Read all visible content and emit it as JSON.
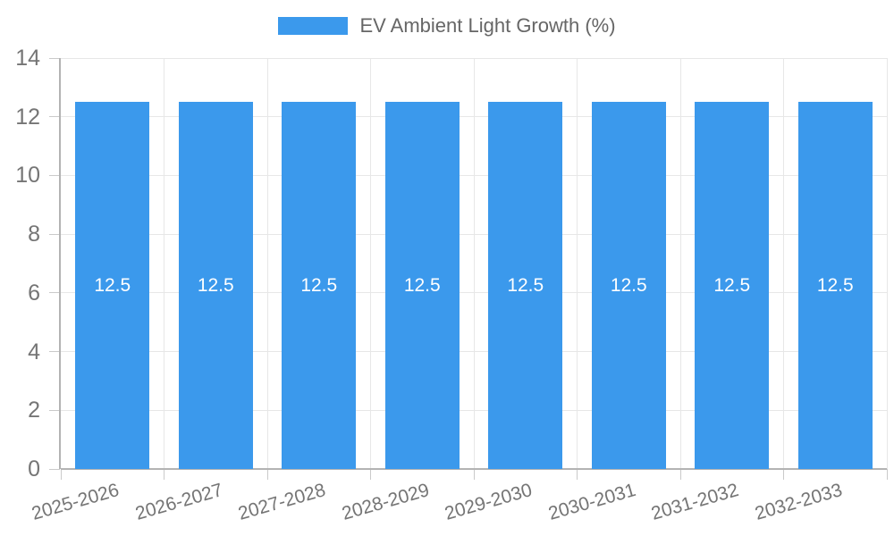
{
  "chart_data": {
    "type": "bar",
    "legend": "EV Ambient Light Growth (%)",
    "legend_position": "top",
    "categories": [
      "2025-2026",
      "2026-2027",
      "2027-2028",
      "2028-2029",
      "2029-2030",
      "2030-2031",
      "2031-2032",
      "2032-2033"
    ],
    "values": [
      12.5,
      12.5,
      12.5,
      12.5,
      12.5,
      12.5,
      12.5,
      12.5
    ],
    "bar_value_labels": [
      "12.5",
      "12.5",
      "12.5",
      "12.5",
      "12.5",
      "12.5",
      "12.5",
      "12.5"
    ],
    "xlabel": "",
    "ylabel": "",
    "ylim": [
      0,
      14
    ],
    "ytick_step": 2,
    "ytick_labels": [
      "0",
      "2",
      "4",
      "6",
      "8",
      "10",
      "12",
      "14"
    ],
    "grid": true,
    "x_label_rotation_deg": -16,
    "colors": {
      "bar": "#3b99ec",
      "grid": "#e7e7e7",
      "axis": "#b3b3b3",
      "tick": "#cacaca",
      "axis_text": "#757575",
      "value_text": "#ffffff",
      "legend_text": "#666666",
      "background": "#ffffff"
    }
  }
}
